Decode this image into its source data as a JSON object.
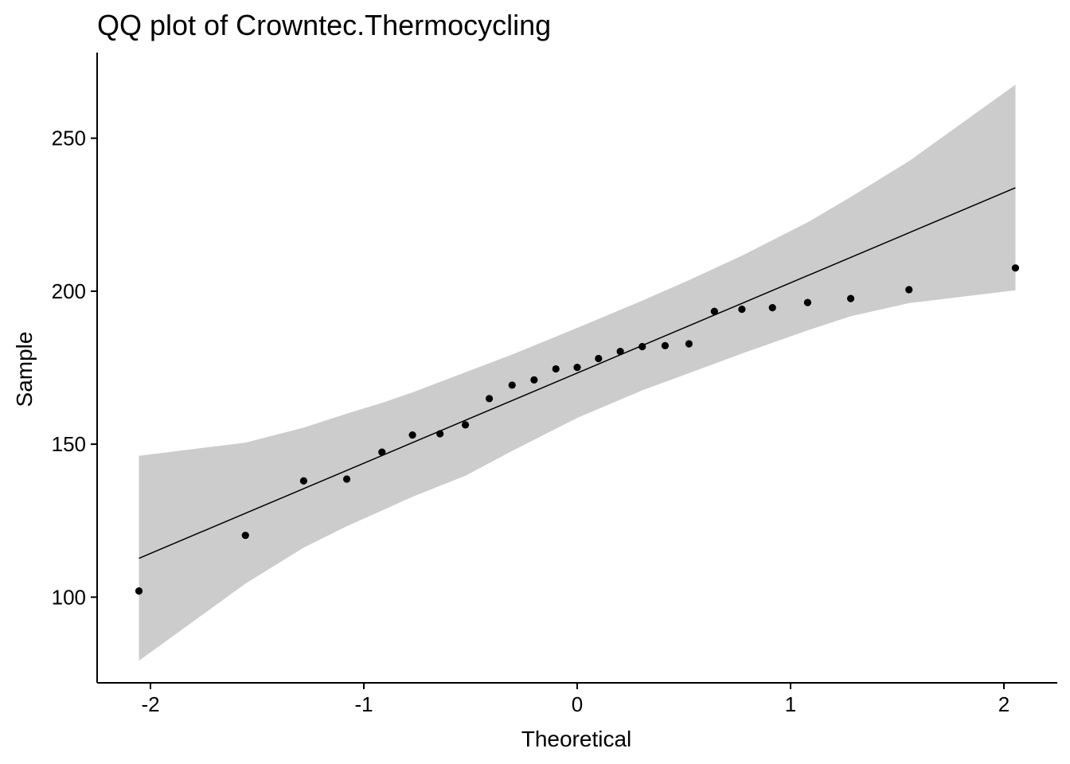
{
  "chart_data": {
    "type": "scatter",
    "title": "QQ plot of Crowntec.Thermocycling",
    "xlabel": "Theoretical",
    "ylabel": "Sample",
    "xlim": [
      -2.25,
      2.25
    ],
    "ylim": [
      72,
      278
    ],
    "xticks": [
      -2,
      -1,
      0,
      1,
      2
    ],
    "xtick_labels": [
      "-2",
      "-1",
      "0",
      "1",
      "2"
    ],
    "yticks": [
      100,
      150,
      200,
      250
    ],
    "ytick_labels": [
      "100",
      "150",
      "200",
      "250"
    ],
    "grid": false,
    "legend": "none",
    "series": [
      {
        "points": [
          [
            -2.054,
            102.0
          ],
          [
            -1.555,
            120.2
          ],
          [
            -1.282,
            138.0
          ],
          [
            -1.08,
            138.6
          ],
          [
            -0.915,
            147.4
          ],
          [
            -0.772,
            153.0
          ],
          [
            -0.643,
            153.4
          ],
          [
            -0.524,
            156.3
          ],
          [
            -0.412,
            164.9
          ],
          [
            -0.305,
            169.3
          ],
          [
            -0.202,
            171.0
          ],
          [
            -0.1,
            174.6
          ],
          [
            0.0,
            175.1
          ],
          [
            0.1,
            178.0
          ],
          [
            0.202,
            180.3
          ],
          [
            0.305,
            181.9
          ],
          [
            0.412,
            182.2
          ],
          [
            0.524,
            182.8
          ],
          [
            0.643,
            193.4
          ],
          [
            0.772,
            194.1
          ],
          [
            0.915,
            194.6
          ],
          [
            1.08,
            196.3
          ],
          [
            1.282,
            197.6
          ],
          [
            1.555,
            200.5
          ],
          [
            2.054,
            207.6
          ]
        ]
      }
    ],
    "reference_line": {
      "x": [
        -2.054,
        2.054
      ],
      "y": [
        112.7,
        233.8
      ]
    },
    "confidence_band": {
      "x": [
        -2.054,
        -1.555,
        -1.282,
        -1.08,
        -0.915,
        -0.772,
        -0.524,
        -0.305,
        0.0,
        0.305,
        0.524,
        0.772,
        1.08,
        1.282,
        1.555,
        2.054
      ],
      "upper": [
        146.2,
        150.5,
        155.4,
        160.0,
        163.5,
        166.9,
        173.5,
        179.3,
        188.0,
        196.9,
        203.6,
        211.6,
        222.5,
        230.8,
        242.5,
        267.5
      ],
      "lower": [
        79.2,
        104.4,
        116.2,
        123.2,
        128.3,
        132.8,
        139.7,
        147.8,
        158.6,
        167.6,
        173.2,
        179.6,
        187.2,
        191.8,
        196.1,
        200.3
      ]
    },
    "colors": {
      "points": "#000000",
      "line": "#000000",
      "band": "#cccccc",
      "axis": "#000000"
    }
  }
}
